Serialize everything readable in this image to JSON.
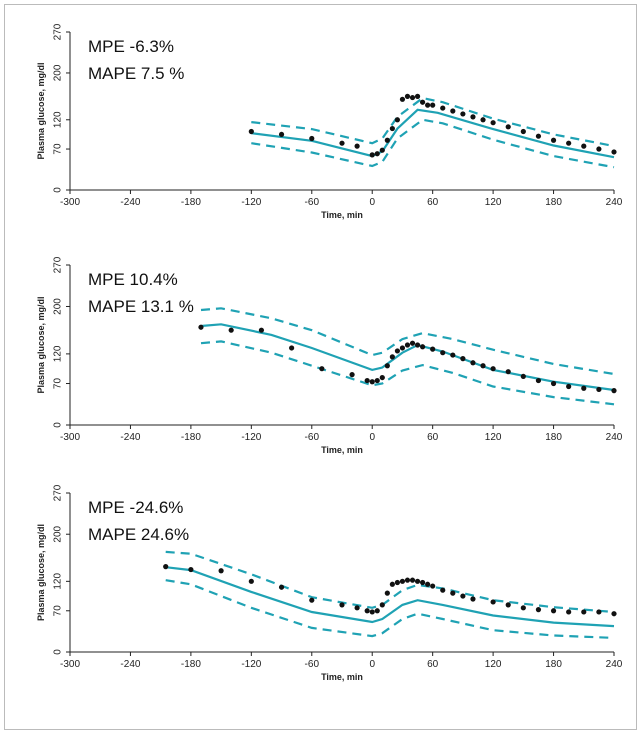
{
  "chart_data": [
    {
      "type": "line",
      "annotations": [
        "MPE -6.3%",
        "MAPE 7.5 %"
      ],
      "xlabel": "Time, min",
      "ylabel": "Plasma glucose, mg/dl",
      "xlim": [
        -300,
        240
      ],
      "ylim": [
        0,
        270
      ],
      "xticks": [
        -300,
        -240,
        -180,
        -120,
        -60,
        0,
        60,
        120,
        180,
        240
      ],
      "yticks": [
        0,
        70,
        120,
        200,
        270
      ],
      "series": [
        {
          "style": "dashed",
          "color": "#1fa2b4",
          "x": [
            -120,
            -60,
            0,
            10,
            25,
            50,
            70,
            120,
            180,
            240
          ],
          "values": [
            116,
            104,
            80,
            88,
            125,
            157,
            150,
            122,
            95,
            75
          ]
        },
        {
          "style": "solid",
          "color": "#1fa2b4",
          "x": [
            -120,
            -60,
            0,
            10,
            25,
            45,
            65,
            120,
            180,
            240
          ],
          "values": [
            97,
            84,
            58,
            66,
            105,
            137,
            132,
            104,
            76,
            56
          ]
        },
        {
          "style": "dashed",
          "color": "#1fa2b4",
          "x": [
            -120,
            -60,
            0,
            10,
            25,
            50,
            70,
            120,
            180,
            240
          ],
          "values": [
            80,
            64,
            41,
            48,
            88,
            120,
            114,
            86,
            58,
            39
          ]
        },
        {
          "style": "points",
          "color": "#111111",
          "x": [
            -120,
            -90,
            -60,
            -30,
            -15,
            0,
            5,
            10,
            15,
            20,
            25,
            30,
            35,
            40,
            45,
            50,
            55,
            60,
            70,
            80,
            90,
            100,
            110,
            120,
            135,
            150,
            165,
            180,
            195,
            210,
            225,
            240
          ],
          "values": [
            100,
            95,
            88,
            80,
            75,
            60,
            62,
            68,
            85,
            105,
            120,
            155,
            160,
            158,
            160,
            150,
            145,
            145,
            140,
            135,
            130,
            125,
            120,
            115,
            108,
            100,
            92,
            85,
            80,
            75,
            70,
            65
          ]
        }
      ]
    },
    {
      "type": "line",
      "annotations": [
        "MPE 10.4%",
        "MAPE 13.1 %"
      ],
      "xlabel": "Time, min",
      "ylabel": "Plasma glucose, mg/dl",
      "xlim": [
        -300,
        240
      ],
      "ylim": [
        0,
        270
      ],
      "xticks": [
        -300,
        -240,
        -180,
        -120,
        -60,
        0,
        60,
        120,
        180,
        240
      ],
      "yticks": [
        0,
        70,
        120,
        200,
        270
      ],
      "series": [
        {
          "style": "dashed",
          "color": "#1fa2b4",
          "x": [
            -170,
            -150,
            -100,
            -60,
            0,
            10,
            30,
            50,
            80,
            120,
            180,
            240
          ],
          "values": [
            194,
            197,
            180,
            160,
            118,
            122,
            145,
            155,
            145,
            127,
            103,
            86
          ]
        },
        {
          "style": "solid",
          "color": "#1fa2b4",
          "x": [
            -170,
            -150,
            -100,
            -60,
            0,
            10,
            30,
            45,
            70,
            120,
            180,
            240
          ],
          "values": [
            167,
            170,
            152,
            130,
            93,
            97,
            122,
            135,
            124,
            93,
            73,
            59
          ]
        },
        {
          "style": "dashed",
          "color": "#1fa2b4",
          "x": [
            -170,
            -150,
            -100,
            -60,
            0,
            10,
            30,
            50,
            80,
            120,
            180,
            240
          ],
          "values": [
            138,
            141,
            122,
            100,
            67,
            70,
            92,
            101,
            88,
            65,
            47,
            35
          ]
        },
        {
          "style": "points",
          "color": "#111111",
          "x": [
            -170,
            -140,
            -110,
            -80,
            -50,
            -20,
            -5,
            0,
            5,
            10,
            15,
            20,
            25,
            30,
            35,
            40,
            45,
            50,
            60,
            70,
            80,
            90,
            100,
            110,
            120,
            135,
            150,
            165,
            180,
            195,
            210,
            225,
            240
          ],
          "values": [
            165,
            160,
            160,
            130,
            95,
            85,
            75,
            73,
            75,
            80,
            100,
            115,
            125,
            130,
            135,
            138,
            135,
            132,
            128,
            122,
            118,
            112,
            105,
            100,
            95,
            90,
            82,
            75,
            70,
            65,
            62,
            60,
            58
          ]
        }
      ]
    },
    {
      "type": "line",
      "annotations": [
        "MPE -24.6%",
        "MAPE 24.6%"
      ],
      "xlabel": "Time, min",
      "ylabel": "Plasma glucose, mg/dl",
      "xlim": [
        -300,
        240
      ],
      "ylim": [
        0,
        270
      ],
      "xticks": [
        -300,
        -240,
        -180,
        -120,
        -60,
        0,
        60,
        120,
        180,
        240
      ],
      "yticks": [
        0,
        70,
        120,
        200,
        270
      ],
      "series": [
        {
          "style": "dashed",
          "color": "#1fa2b4",
          "x": [
            -205,
            -180,
            -120,
            -60,
            0,
            10,
            30,
            45,
            70,
            120,
            180,
            240
          ],
          "values": [
            170,
            167,
            132,
            93,
            75,
            80,
            105,
            114,
            108,
            88,
            76,
            68
          ]
        },
        {
          "style": "solid",
          "color": "#1fa2b4",
          "x": [
            -205,
            -180,
            -120,
            -60,
            0,
            10,
            30,
            45,
            70,
            120,
            180,
            240
          ],
          "values": [
            144,
            139,
            102,
            68,
            51,
            56,
            80,
            88,
            80,
            62,
            50,
            44
          ]
        },
        {
          "style": "dashed",
          "color": "#1fa2b4",
          "x": [
            -205,
            -180,
            -120,
            -60,
            0,
            10,
            30,
            45,
            70,
            120,
            180,
            240
          ],
          "values": [
            122,
            115,
            75,
            41,
            27,
            32,
            56,
            65,
            56,
            37,
            28,
            24
          ]
        },
        {
          "style": "points",
          "color": "#111111",
          "x": [
            -205,
            -180,
            -150,
            -120,
            -90,
            -60,
            -30,
            -15,
            -5,
            0,
            5,
            10,
            15,
            20,
            25,
            30,
            35,
            40,
            45,
            50,
            55,
            60,
            70,
            80,
            90,
            100,
            120,
            135,
            150,
            165,
            180,
            195,
            210,
            225,
            240
          ],
          "values": [
            145,
            140,
            138,
            120,
            110,
            88,
            80,
            75,
            70,
            68,
            70,
            80,
            100,
            115,
            118,
            120,
            122,
            122,
            120,
            118,
            115,
            112,
            105,
            100,
            95,
            90,
            85,
            80,
            75,
            72,
            70,
            68,
            68,
            68,
            65
          ]
        }
      ]
    }
  ]
}
